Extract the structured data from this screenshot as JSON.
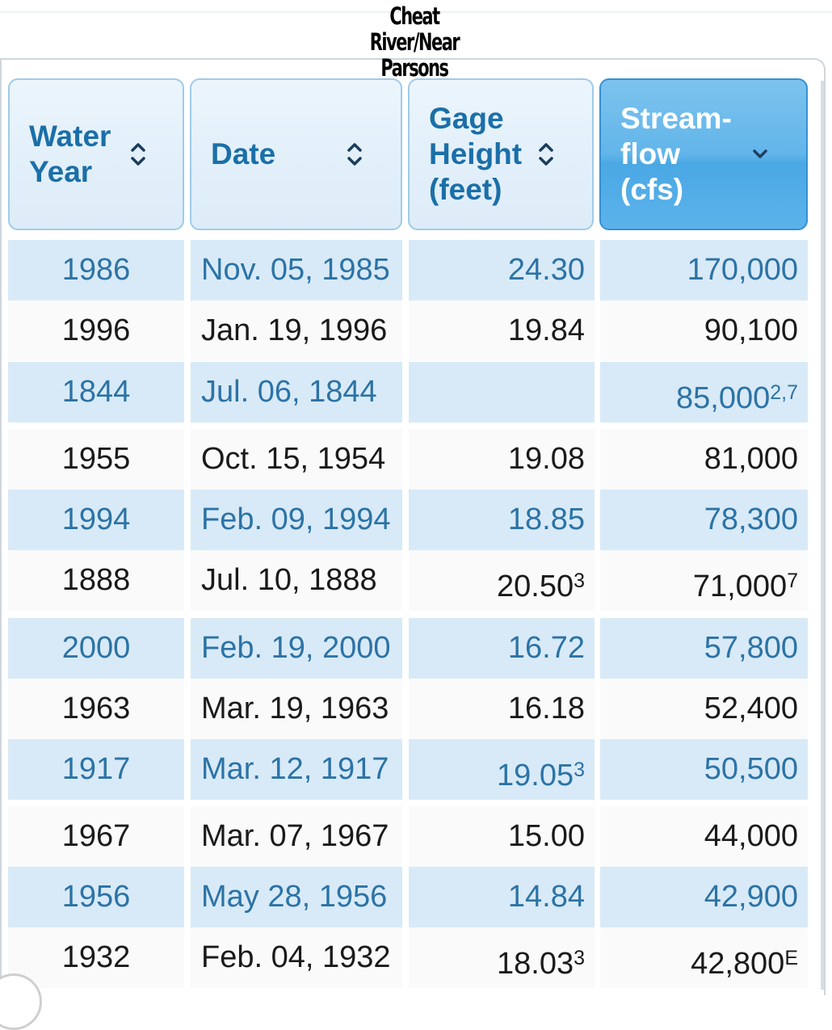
{
  "title": "Cheat River/Near Parsons",
  "title_lines": [
    "Cheat",
    "River/Near",
    "Parsons"
  ],
  "columns": [
    {
      "lines": [
        "Water",
        "Year"
      ],
      "sort_icon": "sort-both-icon"
    },
    {
      "lines": [
        "Date"
      ],
      "sort_icon": "sort-both-icon"
    },
    {
      "lines": [
        "Gage",
        "Height",
        "(feet)"
      ],
      "sort_icon": "sort-both-icon"
    },
    {
      "lines": [
        "Stream-",
        "flow",
        "(cfs)"
      ],
      "sort_icon": "sort-desc-icon",
      "active": true
    }
  ],
  "colors": {
    "header_active_bg": "#62b5ea",
    "header_bg": "#e3f0fa",
    "header_text": "#1b6fa8",
    "row_odd_bg": "#d8eaf7",
    "row_odd_text": "#2c73a6",
    "row_even_bg": "#fafafa",
    "row_even_text": "#1a1a1a"
  },
  "rows": [
    {
      "year": "1986",
      "date": "Nov. 05, 1985",
      "gage": "24.30",
      "gage_note": "",
      "flow": "170,000",
      "flow_note": ""
    },
    {
      "year": "1996",
      "date": "Jan. 19, 1996",
      "gage": "19.84",
      "gage_note": "",
      "flow": "90,100",
      "flow_note": ""
    },
    {
      "year": "1844",
      "date": "Jul. 06, 1844",
      "gage": "",
      "gage_note": "",
      "flow": "85,000",
      "flow_note": "2,7"
    },
    {
      "year": "1955",
      "date": "Oct. 15, 1954",
      "gage": "19.08",
      "gage_note": "",
      "flow": "81,000",
      "flow_note": ""
    },
    {
      "year": "1994",
      "date": "Feb. 09, 1994",
      "gage": "18.85",
      "gage_note": "",
      "flow": "78,300",
      "flow_note": ""
    },
    {
      "year": "1888",
      "date": "Jul. 10, 1888",
      "gage": "20.50",
      "gage_note": "3",
      "flow": "71,000",
      "flow_note": "7"
    },
    {
      "year": "2000",
      "date": "Feb. 19, 2000",
      "gage": "16.72",
      "gage_note": "",
      "flow": "57,800",
      "flow_note": ""
    },
    {
      "year": "1963",
      "date": "Mar. 19, 1963",
      "gage": "16.18",
      "gage_note": "",
      "flow": "52,400",
      "flow_note": ""
    },
    {
      "year": "1917",
      "date": "Mar. 12, 1917",
      "gage": "19.05",
      "gage_note": "3",
      "flow": "50,500",
      "flow_note": ""
    },
    {
      "year": "1967",
      "date": "Mar. 07, 1967",
      "gage": "15.00",
      "gage_note": "",
      "flow": "44,000",
      "flow_note": ""
    },
    {
      "year": "1956",
      "date": "May 28, 1956",
      "gage": "14.84",
      "gage_note": "",
      "flow": "42,900",
      "flow_note": ""
    },
    {
      "year": "1932",
      "date": "Feb. 04, 1932",
      "gage": "18.03",
      "gage_note": "3",
      "flow": "42,800",
      "flow_note": "E"
    }
  ]
}
